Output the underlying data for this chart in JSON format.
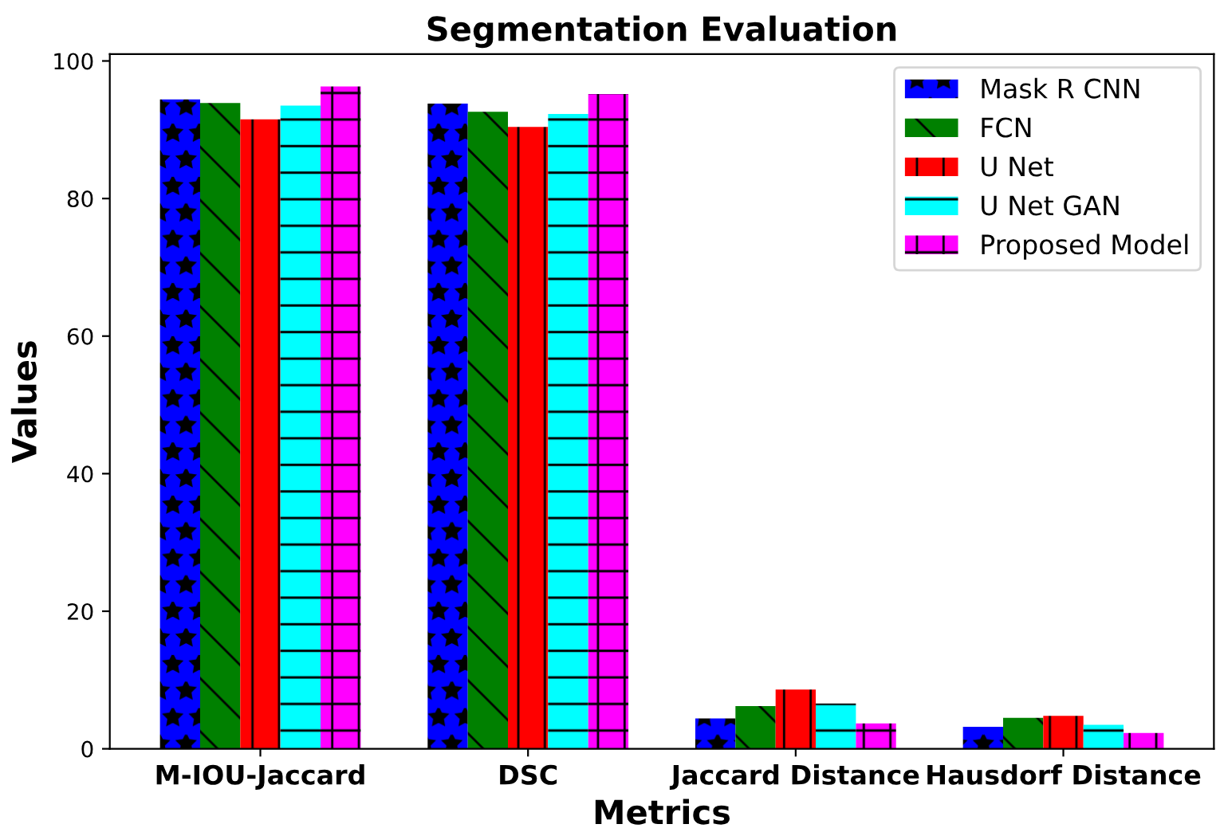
{
  "chart_data": {
    "type": "bar",
    "title": "Segmentation Evaluation",
    "xlabel": "Metrics",
    "ylabel": "Values",
    "categories": [
      "M-IOU-Jaccard",
      "DSC",
      "Jaccard Distance",
      "Hausdorf Distance"
    ],
    "series": [
      {
        "name": "Mask R CNN",
        "color": "#0000ff",
        "values": [
          94.4,
          93.8,
          4.4,
          3.2
        ]
      },
      {
        "name": "FCN",
        "color": "#008000",
        "values": [
          93.9,
          92.6,
          6.2,
          4.5
        ]
      },
      {
        "name": "U Net",
        "color": "#ff0000",
        "values": [
          91.5,
          90.4,
          8.6,
          4.8
        ]
      },
      {
        "name": "U Net GAN",
        "color": "#00ffff",
        "values": [
          93.5,
          92.3,
          6.6,
          3.5
        ]
      },
      {
        "name": "Proposed Model",
        "color": "#ff00ff",
        "values": [
          96.3,
          95.2,
          3.7,
          2.3
        ]
      }
    ],
    "ylim": [
      0,
      101
    ],
    "yticks": [
      0,
      20,
      40,
      60,
      80,
      100
    ],
    "grid": false,
    "legend": "top right"
  }
}
